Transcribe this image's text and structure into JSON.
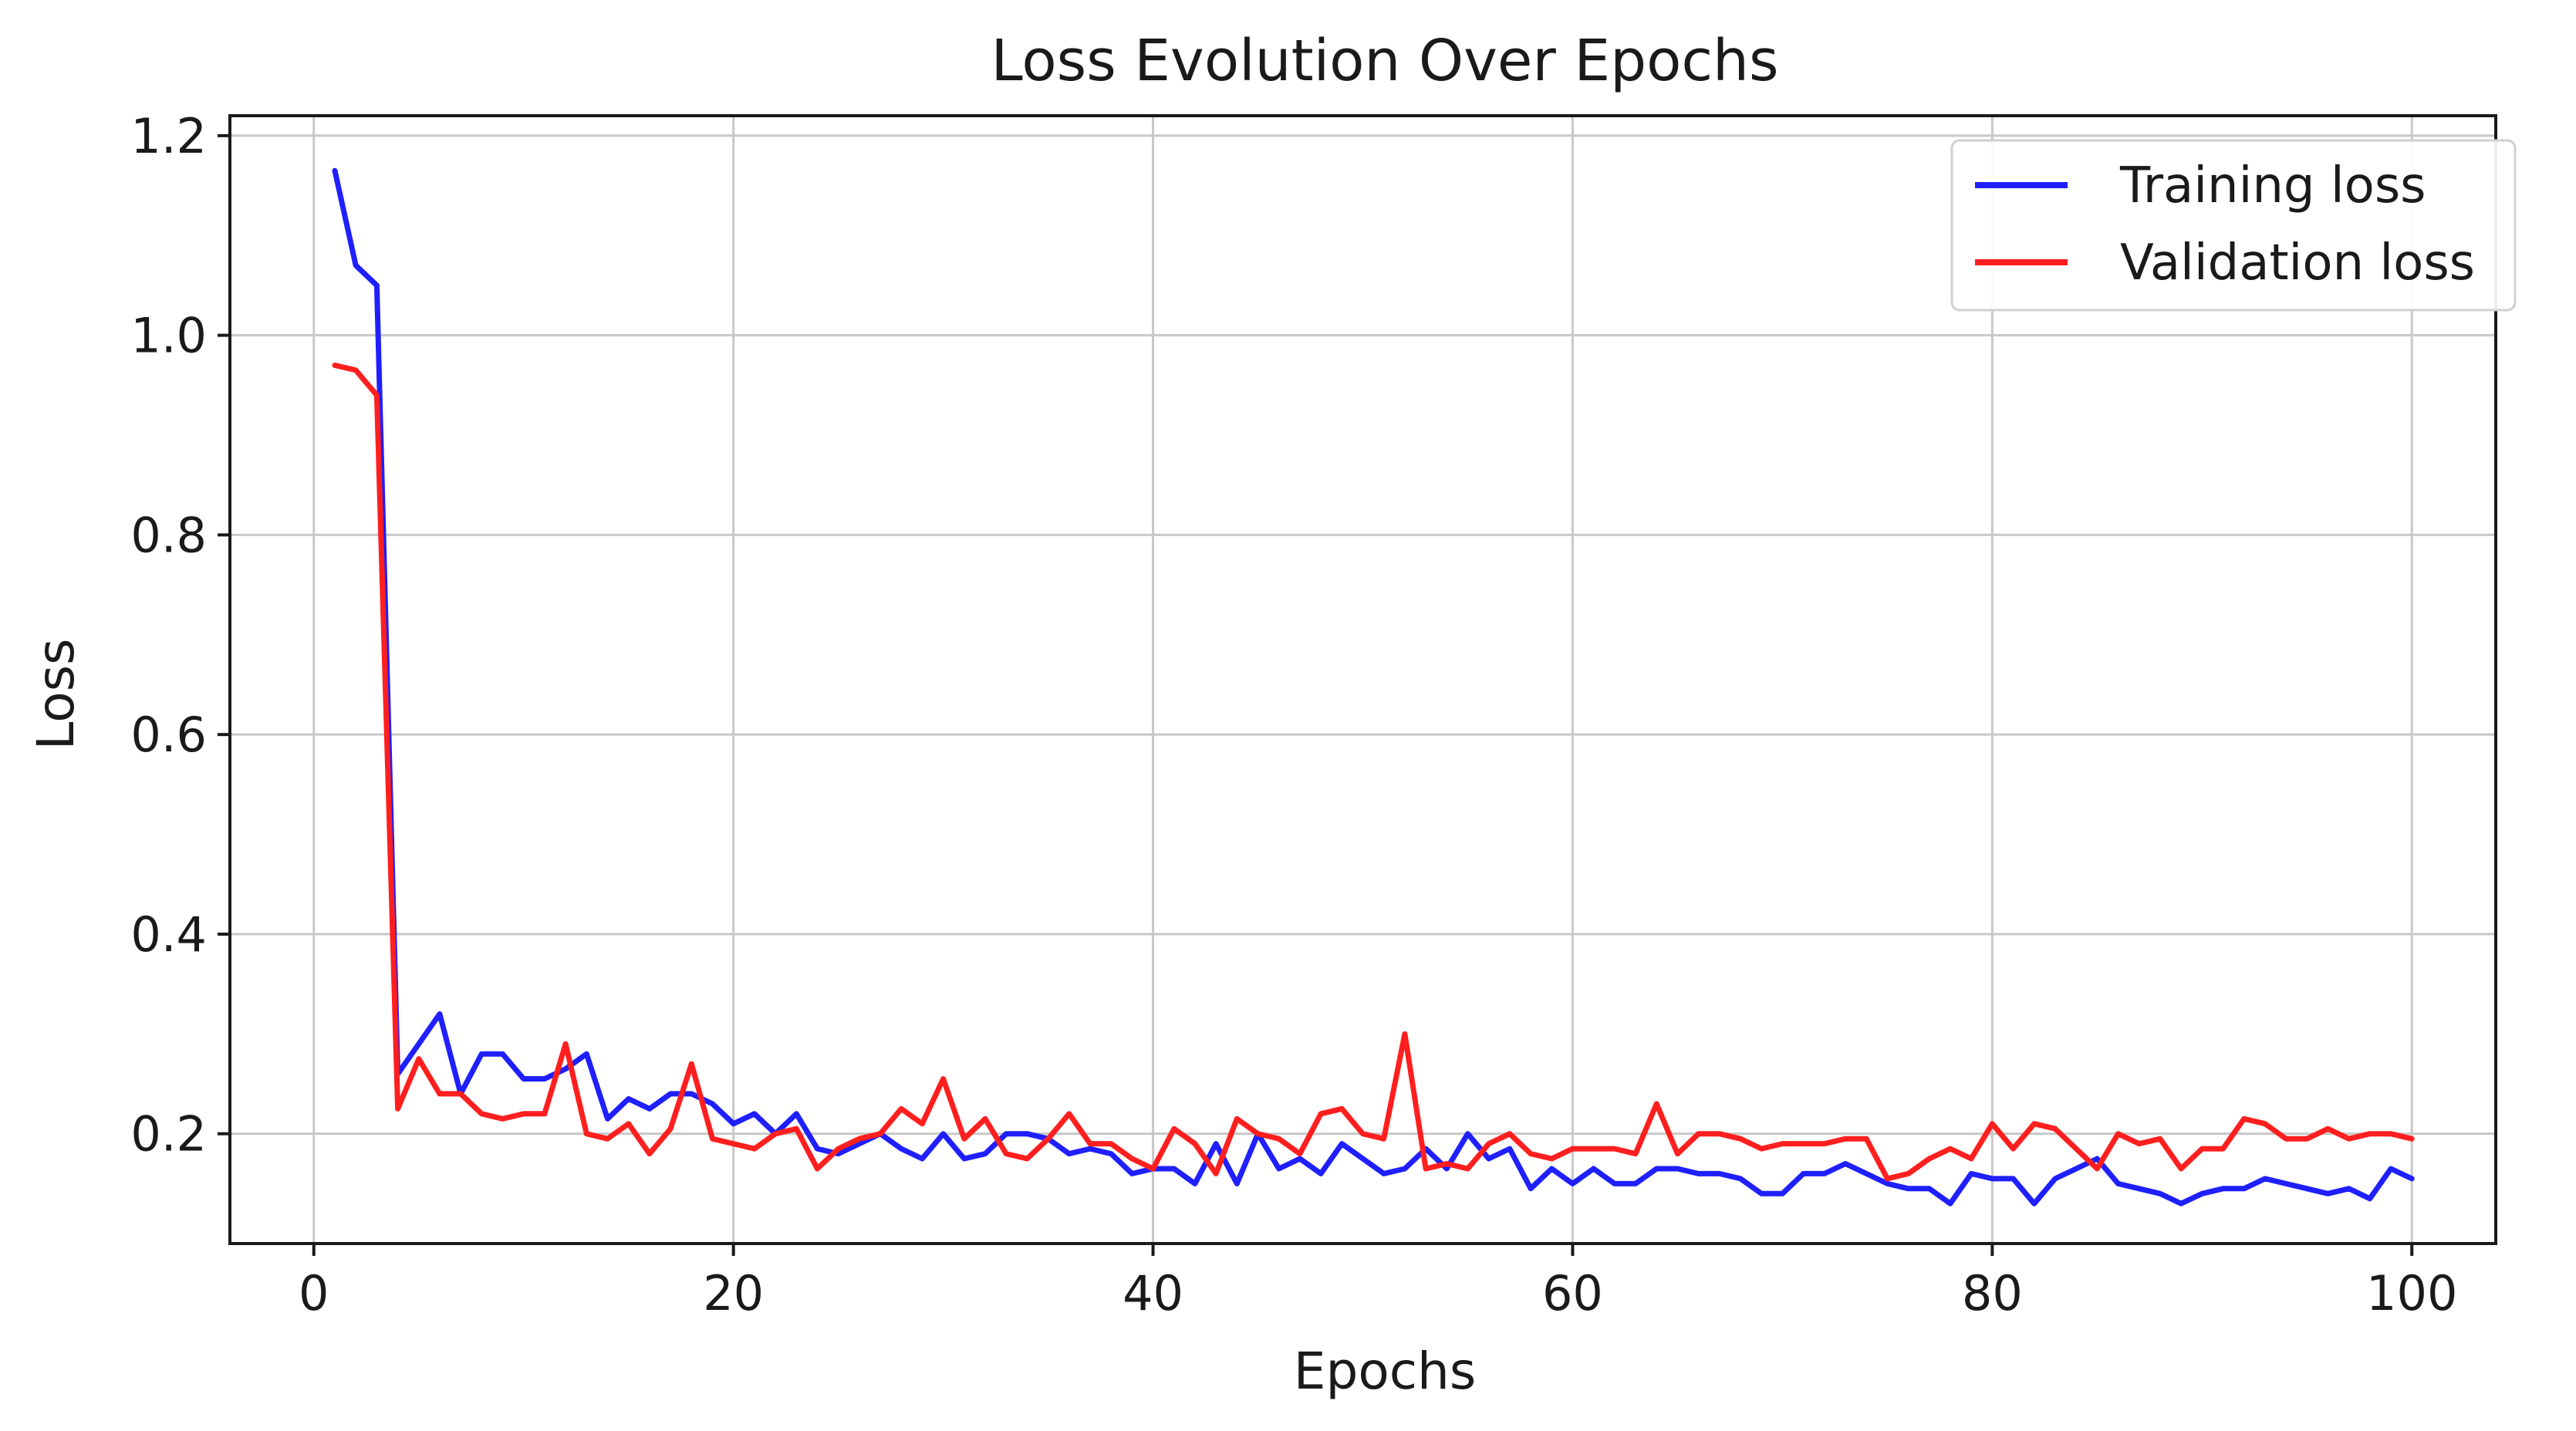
{
  "chart_data": {
    "type": "line",
    "title": "Loss Evolution Over Epochs",
    "xlabel": "Epochs",
    "ylabel": "Loss",
    "xlim": [
      -4,
      104
    ],
    "ylim": [
      0.09,
      1.22
    ],
    "xticks": [
      0,
      20,
      40,
      60,
      80,
      100
    ],
    "yticks": [
      0.2,
      0.4,
      0.6,
      0.8,
      1.0,
      1.2
    ],
    "xtick_labels": [
      "0",
      "20",
      "40",
      "60",
      "80",
      "100"
    ],
    "ytick_labels": [
      "0.2",
      "0.4",
      "0.6",
      "0.8",
      "1.0",
      "1.2"
    ],
    "grid": true,
    "legend_position": "top-right",
    "x": [
      1,
      2,
      3,
      4,
      5,
      6,
      7,
      8,
      9,
      10,
      11,
      12,
      13,
      14,
      15,
      16,
      17,
      18,
      19,
      20,
      21,
      22,
      23,
      24,
      25,
      26,
      27,
      28,
      29,
      30,
      31,
      32,
      33,
      34,
      35,
      36,
      37,
      38,
      39,
      40,
      41,
      42,
      43,
      44,
      45,
      46,
      47,
      48,
      49,
      50,
      51,
      52,
      53,
      54,
      55,
      56,
      57,
      58,
      59,
      60,
      61,
      62,
      63,
      64,
      65,
      66,
      67,
      68,
      69,
      70,
      71,
      72,
      73,
      74,
      75,
      76,
      77,
      78,
      79,
      80,
      81,
      82,
      83,
      84,
      85,
      86,
      87,
      88,
      89,
      90,
      91,
      92,
      93,
      94,
      95,
      96,
      97,
      98,
      99,
      100
    ],
    "series": [
      {
        "name": "Training loss",
        "color": "#1f1fff",
        "values": [
          1.165,
          1.07,
          1.05,
          0.26,
          0.29,
          0.32,
          0.24,
          0.28,
          0.28,
          0.255,
          0.255,
          0.265,
          0.28,
          0.215,
          0.235,
          0.225,
          0.24,
          0.24,
          0.23,
          0.21,
          0.22,
          0.2,
          0.22,
          0.185,
          0.18,
          0.19,
          0.2,
          0.185,
          0.175,
          0.2,
          0.175,
          0.18,
          0.2,
          0.2,
          0.195,
          0.18,
          0.185,
          0.18,
          0.16,
          0.165,
          0.165,
          0.15,
          0.19,
          0.15,
          0.2,
          0.165,
          0.175,
          0.16,
          0.19,
          0.175,
          0.16,
          0.165,
          0.185,
          0.165,
          0.2,
          0.175,
          0.185,
          0.145,
          0.165,
          0.15,
          0.165,
          0.15,
          0.15,
          0.165,
          0.165,
          0.16,
          0.16,
          0.155,
          0.14,
          0.14,
          0.16,
          0.16,
          0.17,
          0.16,
          0.15,
          0.145,
          0.145,
          0.13,
          0.16,
          0.155,
          0.155,
          0.13,
          0.155,
          0.165,
          0.175,
          0.15,
          0.145,
          0.14,
          0.13,
          0.14,
          0.145,
          0.145,
          0.155,
          0.15,
          0.145,
          0.14,
          0.145,
          0.135,
          0.165,
          0.155
        ]
      },
      {
        "name": "Validation loss",
        "color": "#ff1f1f",
        "values": [
          0.97,
          0.965,
          0.94,
          0.225,
          0.275,
          0.24,
          0.24,
          0.22,
          0.215,
          0.22,
          0.22,
          0.29,
          0.2,
          0.195,
          0.21,
          0.18,
          0.205,
          0.27,
          0.195,
          0.19,
          0.185,
          0.2,
          0.205,
          0.165,
          0.185,
          0.195,
          0.2,
          0.225,
          0.21,
          0.255,
          0.195,
          0.215,
          0.18,
          0.175,
          0.195,
          0.22,
          0.19,
          0.19,
          0.175,
          0.165,
          0.205,
          0.19,
          0.16,
          0.215,
          0.2,
          0.195,
          0.18,
          0.22,
          0.225,
          0.2,
          0.195,
          0.3,
          0.165,
          0.17,
          0.165,
          0.19,
          0.2,
          0.18,
          0.175,
          0.185,
          0.185,
          0.185,
          0.18,
          0.23,
          0.18,
          0.2,
          0.2,
          0.195,
          0.185,
          0.19,
          0.19,
          0.19,
          0.195,
          0.195,
          0.155,
          0.16,
          0.175,
          0.185,
          0.175,
          0.21,
          0.185,
          0.21,
          0.205,
          0.185,
          0.165,
          0.2,
          0.19,
          0.195,
          0.165,
          0.185,
          0.185,
          0.215,
          0.21,
          0.195,
          0.195,
          0.205,
          0.195,
          0.2,
          0.2,
          0.195
        ]
      }
    ]
  }
}
